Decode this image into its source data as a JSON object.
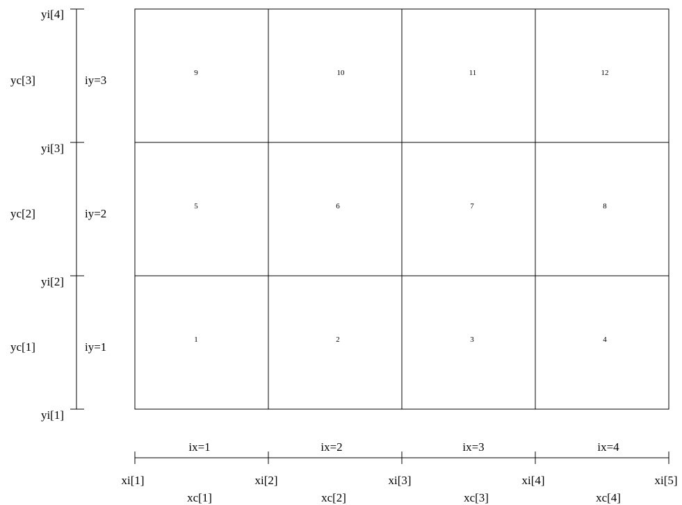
{
  "grid": {
    "cells": [
      [
        "1",
        "2",
        "3",
        "4"
      ],
      [
        "5",
        "6",
        "7",
        "8"
      ],
      [
        "9",
        "10",
        "11",
        "12"
      ]
    ]
  },
  "x_axis": {
    "interface_labels": [
      "xi[1]",
      "xi[2]",
      "xi[3]",
      "xi[4]",
      "xi[5]"
    ],
    "center_labels": [
      "xc[1]",
      "xc[2]",
      "xc[3]",
      "xc[4]"
    ],
    "index_labels": [
      "ix=1",
      "ix=2",
      "ix=3",
      "ix=4"
    ]
  },
  "y_axis": {
    "interface_labels": [
      "yi[1]",
      "yi[2]",
      "yi[3]",
      "yi[4]"
    ],
    "center_labels": [
      "yc[1]",
      "yc[2]",
      "yc[3]"
    ],
    "index_labels": [
      "iy=1",
      "iy=2",
      "iy=3"
    ]
  }
}
